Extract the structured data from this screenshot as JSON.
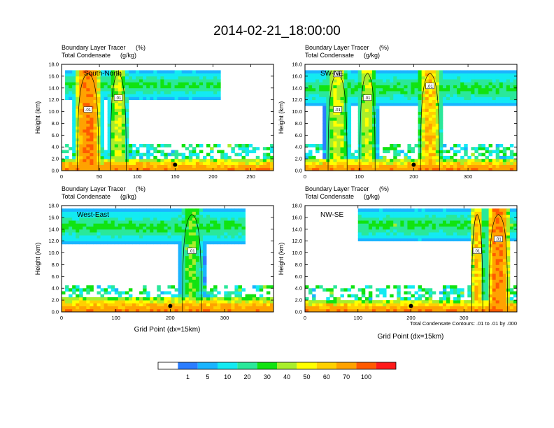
{
  "title": "2014-02-21_18:00:00",
  "palette": [
    "#ffffff",
    "#2b7dff",
    "#1ab4ff",
    "#13eaf2",
    "#2ae89a",
    "#11e311",
    "#a8ee2b",
    "#ffff00",
    "#ffd000",
    "#ffa200",
    "#ff5a00",
    "#ff1a1a"
  ],
  "colorbar": {
    "labels": [
      "1",
      "5",
      "10",
      "20",
      "30",
      "40",
      "50",
      "60",
      "70",
      "100"
    ]
  },
  "contour_note": "Total Condensate Contours: .01 to .01 by .000",
  "chart_data": [
    {
      "type": "heatmap",
      "name": "South-North",
      "left_title": "Boundary Layer Tracer",
      "left_unit": "(%)",
      "left_title2": "Total Condensate",
      "left_unit2": "(g/kg)",
      "ylabel": "Height (km)",
      "xlabel": "",
      "xlim": [
        0,
        280
      ],
      "ylim": [
        0,
        18
      ],
      "xticks": [
        "0",
        "50",
        "100",
        "150",
        "200",
        "250"
      ],
      "yticks": [
        "0.0",
        "2.0",
        "4.0",
        "6.0",
        "8.0",
        "10.0",
        "12.0",
        "14.0",
        "16.0",
        "18.0"
      ],
      "contour_labels": [
        ".01",
        ".01"
      ],
      "marker_x": 150,
      "marker_height": 1,
      "tracer_field": {
        "anvil_top": 17,
        "anvil_bottom": 12,
        "anvil_extent": [
          5,
          210
        ],
        "towers": [
          {
            "x": 35,
            "width": 20,
            "peak": 100
          },
          {
            "x": 75,
            "width": 15,
            "peak": 50
          }
        ],
        "surface_layer_top": 2,
        "surface_peak": 100
      }
    },
    {
      "type": "heatmap",
      "name": "SW-NE",
      "left_title": "Boundary Layer Tracer",
      "left_unit": "(%)",
      "left_title2": "Total Condensate",
      "left_unit2": "(g/kg)",
      "ylabel": "Height (km)",
      "xlabel": "",
      "xlim": [
        0,
        390
      ],
      "ylim": [
        0,
        18
      ],
      "xticks": [
        "0",
        "100",
        "200",
        "300"
      ],
      "yticks": [
        "0.0",
        "2.0",
        "4.0",
        "6.0",
        "8.0",
        "10.0",
        "12.0",
        "14.0",
        "16.0",
        "18.0"
      ],
      "contour_labels": [
        ".01",
        ".01",
        ".01",
        ".01"
      ],
      "marker_x": 200,
      "marker_height": 1,
      "tracer_field": {
        "anvil_top": 17,
        "anvil_bottom": 11,
        "anvil_extent": [
          0,
          390
        ],
        "towers": [
          {
            "x": 60,
            "width": 25,
            "peak": 50
          },
          {
            "x": 115,
            "width": 20,
            "peak": 50
          },
          {
            "x": 230,
            "width": 25,
            "peak": 70
          }
        ],
        "surface_layer_top": 2,
        "surface_peak": 100
      }
    },
    {
      "type": "heatmap",
      "name": "West-East",
      "left_title": "Boundary Layer Tracer",
      "left_unit": "(%)",
      "left_title2": "Total Condensate",
      "left_unit2": "(g/kg)",
      "ylabel": "Height (km)",
      "xlabel": "Grid Point (dx=15km)",
      "xlim": [
        0,
        390
      ],
      "ylim": [
        0,
        18
      ],
      "xticks": [
        "0",
        "100",
        "200",
        "300"
      ],
      "yticks": [
        "0.0",
        "2.0",
        "4.0",
        "6.0",
        "8.0",
        "10.0",
        "12.0",
        "14.0",
        "16.0",
        "18.0"
      ],
      "contour_labels": [
        ".01"
      ],
      "marker_x": 200,
      "marker_height": 1,
      "tracer_field": {
        "anvil_top": 17.5,
        "anvil_bottom": 11.5,
        "anvil_extent": [
          0,
          340
        ],
        "towers": [
          {
            "x": 240,
            "width": 25,
            "peak": 40
          }
        ],
        "surface_layer_top": 2.5,
        "surface_peak": 100
      }
    },
    {
      "type": "heatmap",
      "name": "NW-SE",
      "left_title": "Boundary Layer Tracer",
      "left_unit": "(%)",
      "left_title2": "Total Condensate",
      "left_unit2": "(g/kg)",
      "ylabel": "Height (km)",
      "xlabel": "Grid Point (dx=15km)",
      "xlim": [
        0,
        400
      ],
      "ylim": [
        0,
        18
      ],
      "xticks": [
        "0",
        "100",
        "200",
        "300"
      ],
      "yticks": [
        "0.0",
        "2.0",
        "4.0",
        "6.0",
        "8.0",
        "10.0",
        "12.0",
        "14.0",
        "16.0",
        "18.0"
      ],
      "contour_labels": [
        ".01",
        ".01"
      ],
      "marker_x": 200,
      "marker_height": 1,
      "tracer_field": {
        "anvil_top": 17.5,
        "anvil_bottom": 12,
        "anvil_extent": [
          100,
          400
        ],
        "towers": [
          {
            "x": 325,
            "width": 15,
            "peak": 70
          },
          {
            "x": 365,
            "width": 25,
            "peak": 100
          }
        ],
        "surface_layer_top": 2,
        "surface_peak": 100
      }
    }
  ]
}
